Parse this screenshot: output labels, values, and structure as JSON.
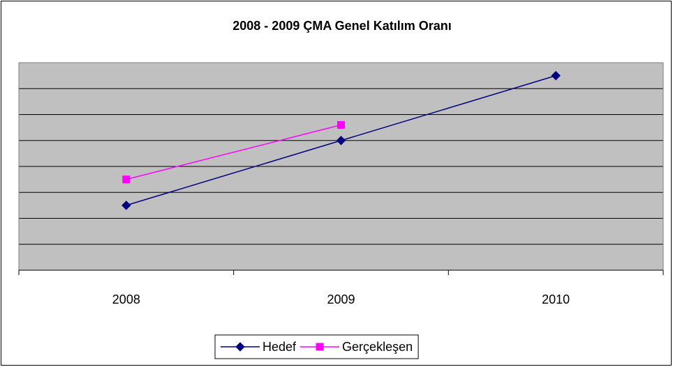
{
  "chart_data": {
    "type": "line",
    "title": "2008 - 2009 ÇMA Genel Katılım Oranı",
    "categories": [
      "2008",
      "2009",
      "2010"
    ],
    "series": [
      {
        "name": "Hedef",
        "color": "#000080",
        "marker": "diamond",
        "values": [
          2.5,
          5.0,
          7.5
        ]
      },
      {
        "name": "Gerçekleşen",
        "color": "#ff00ff",
        "marker": "square",
        "values": [
          3.5,
          5.6,
          null
        ]
      }
    ],
    "ylim": [
      0,
      8
    ],
    "yticks": [
      0,
      1,
      2,
      3,
      4,
      5,
      6,
      7,
      8
    ],
    "grid": true,
    "legend": "bottom"
  }
}
